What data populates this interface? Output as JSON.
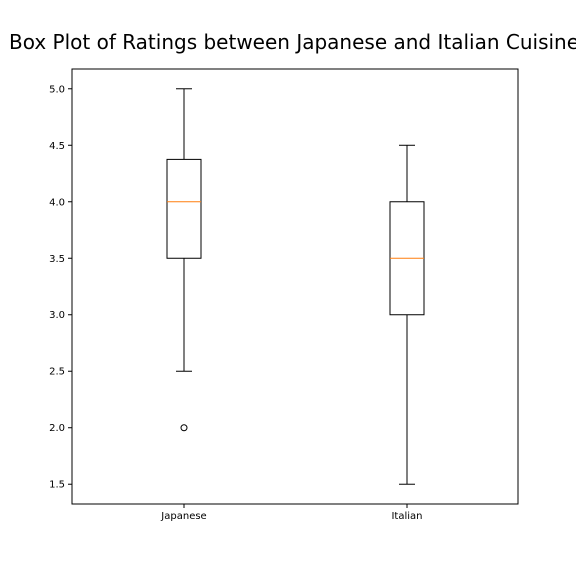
{
  "chart_data": {
    "type": "box",
    "title": "Box Plot of Ratings between Japanese and Italian Cuisine",
    "xlabel": "",
    "ylabel": "",
    "categories": [
      "Japanese",
      "Italian"
    ],
    "boxes": [
      {
        "name": "Japanese",
        "whisker_low": 2.5,
        "q1": 3.5,
        "median": 4.0,
        "q3": 4.375,
        "whisker_high": 5.0,
        "outliers": [
          2.0
        ]
      },
      {
        "name": "Italian",
        "whisker_low": 1.5,
        "q1": 3.0,
        "median": 3.5,
        "q3": 4.0,
        "whisker_high": 4.5,
        "outliers": []
      }
    ],
    "ylim": [
      1.325,
      5.175
    ],
    "yticks": [
      "1.5",
      "2.0",
      "2.5",
      "3.0",
      "3.5",
      "4.0",
      "4.5",
      "5.0"
    ],
    "grid": false,
    "colors": {
      "box": "#000000",
      "median": "#ff7f0e",
      "axis": "#000000"
    }
  }
}
